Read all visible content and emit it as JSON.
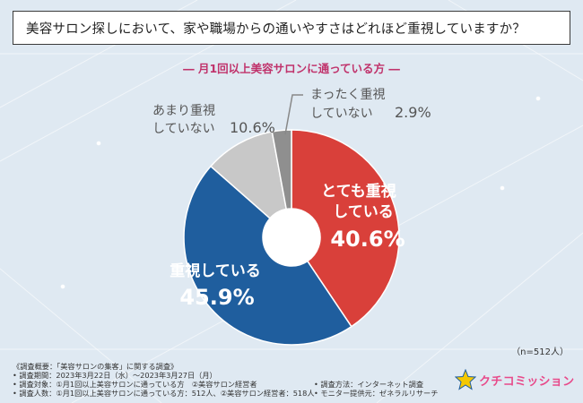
{
  "question": "美容サロン探しにおいて、家や職場からの通いやすさはどれほど重視していますか？",
  "target_label": "― 月1回以上美容サロンに通っている方 ―",
  "n_note": "（n=512人）",
  "chart_data": {
    "type": "pie",
    "title": "美容サロン探しにおいて、家や職場からの通いやすさはどれほど重視していますか？",
    "subtitle": "月1回以上美容サロンに通っている方",
    "categories": [
      "とても重視している",
      "重視している",
      "あまり重視していない",
      "まったく重視していない"
    ],
    "values": [
      40.6,
      45.9,
      10.6,
      2.9
    ],
    "labels": [
      {
        "line1": "とても重視",
        "line2": "している",
        "value": "40.6%"
      },
      {
        "line1": "重視している",
        "line2": "",
        "value": "45.9%"
      },
      {
        "line1": "あまり重視",
        "line2": "していない",
        "value": "10.6%"
      },
      {
        "line1": "まったく重視",
        "line2": "していない",
        "value": "2.9%"
      }
    ],
    "colors": [
      "#d9403a",
      "#1f5e9e",
      "#c8c8c8",
      "#8f8f8f"
    ],
    "donut": true
  },
  "footer": {
    "line1": "《調査概要：「美容サロンの集客」に関する調査》",
    "line2": "• 調査期間：2023年3月22日（水）～2023年3月27日（月）",
    "line3": "• 調査対象：①月1回以上美容サロンに通っている方　②美容サロン経営者",
    "line4": "• 調査人数：①月1回以上美容サロンに通っている方：512人、②美容サロン経営者：518人",
    "right1": "• 調査方法：インターネット調査",
    "right2": "• モニター提供元：ゼネラルリサーチ"
  },
  "logo": {
    "text": "クチコミッション",
    "icon": "star-icon",
    "color": "#e84a8a",
    "star_color": "#f5c800"
  }
}
